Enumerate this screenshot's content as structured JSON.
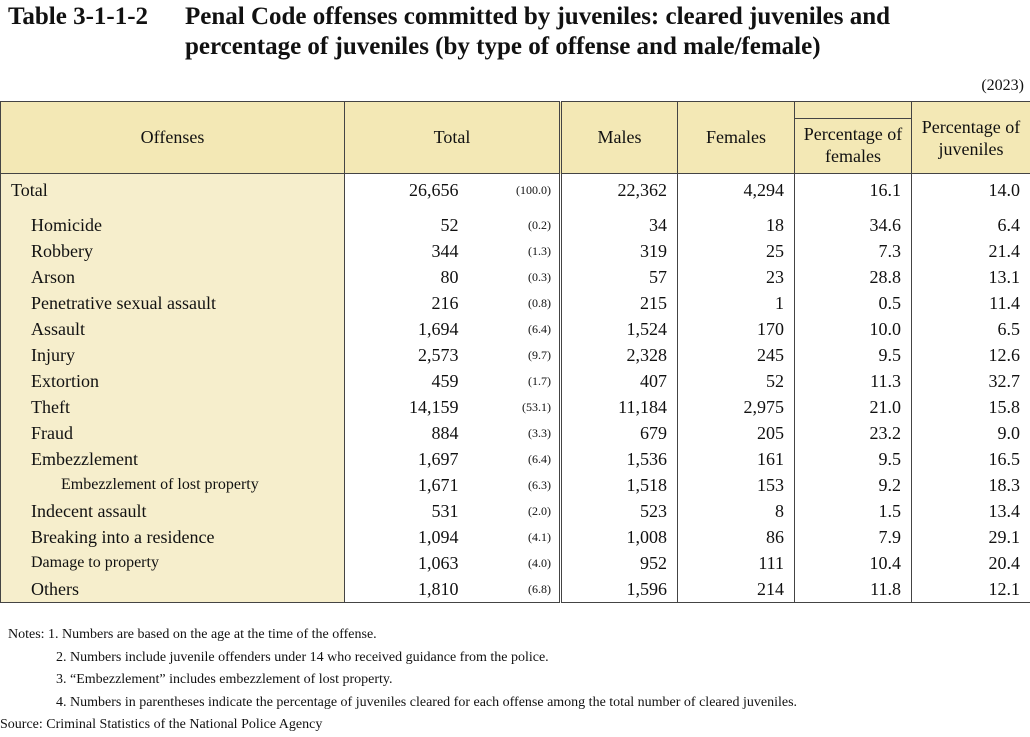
{
  "title": {
    "number": "Table 3-1-1-2",
    "line1": "Penal Code offenses committed by juveniles: cleared juveniles and",
    "line2": "percentage of juveniles (by type of offense and male/female)"
  },
  "year": "(2023)",
  "headers": {
    "offenses": "Offenses",
    "total": "Total",
    "males": "Males",
    "females": "Females",
    "pct_females": "Percentage of females",
    "pct_juveniles": "Percentage of juveniles"
  },
  "rows": [
    {
      "offense": "Total",
      "total": "26,656",
      "total_pct": "(100.0)",
      "males": "22,362",
      "females": "4,294",
      "pct_females": "16.1",
      "pct_juveniles": "14.0"
    },
    {
      "offense": "Homicide",
      "total": "52",
      "total_pct": "(0.2)",
      "males": "34",
      "females": "18",
      "pct_females": "34.6",
      "pct_juveniles": "6.4"
    },
    {
      "offense": "Robbery",
      "total": "344",
      "total_pct": "(1.3)",
      "males": "319",
      "females": "25",
      "pct_females": "7.3",
      "pct_juveniles": "21.4"
    },
    {
      "offense": "Arson",
      "total": "80",
      "total_pct": "(0.3)",
      "males": "57",
      "females": "23",
      "pct_females": "28.8",
      "pct_juveniles": "13.1"
    },
    {
      "offense": "Penetrative sexual assault",
      "total": "216",
      "total_pct": "(0.8)",
      "males": "215",
      "females": "1",
      "pct_females": "0.5",
      "pct_juveniles": "11.4"
    },
    {
      "offense": "Assault",
      "total": "1,694",
      "total_pct": "(6.4)",
      "males": "1,524",
      "females": "170",
      "pct_females": "10.0",
      "pct_juveniles": "6.5"
    },
    {
      "offense": "Injury",
      "total": "2,573",
      "total_pct": "(9.7)",
      "males": "2,328",
      "females": "245",
      "pct_females": "9.5",
      "pct_juveniles": "12.6"
    },
    {
      "offense": "Extortion",
      "total": "459",
      "total_pct": "(1.7)",
      "males": "407",
      "females": "52",
      "pct_females": "11.3",
      "pct_juveniles": "32.7"
    },
    {
      "offense": "Theft",
      "total": "14,159",
      "total_pct": "(53.1)",
      "males": "11,184",
      "females": "2,975",
      "pct_females": "21.0",
      "pct_juveniles": "15.8"
    },
    {
      "offense": "Fraud",
      "total": "884",
      "total_pct": "(3.3)",
      "males": "679",
      "females": "205",
      "pct_females": "23.2",
      "pct_juveniles": "9.0"
    },
    {
      "offense": "Embezzlement",
      "total": "1,697",
      "total_pct": "(6.4)",
      "males": "1,536",
      "females": "161",
      "pct_females": "9.5",
      "pct_juveniles": "16.5"
    },
    {
      "offense": "Embezzlement of lost property",
      "total": "1,671",
      "total_pct": "(6.3)",
      "males": "1,518",
      "females": "153",
      "pct_females": "9.2",
      "pct_juveniles": "18.3"
    },
    {
      "offense": "Indecent assault",
      "total": "531",
      "total_pct": "(2.0)",
      "males": "523",
      "females": "8",
      "pct_females": "1.5",
      "pct_juveniles": "13.4"
    },
    {
      "offense": "Breaking into a residence",
      "total": "1,094",
      "total_pct": "(4.1)",
      "males": "1,008",
      "females": "86",
      "pct_females": "7.9",
      "pct_juveniles": "29.1"
    },
    {
      "offense": "Damage to property",
      "total": "1,063",
      "total_pct": "(4.0)",
      "males": "952",
      "females": "111",
      "pct_females": "10.4",
      "pct_juveniles": "20.4"
    },
    {
      "offense": "Others",
      "total": "1,810",
      "total_pct": "(6.8)",
      "males": "1,596",
      "females": "214",
      "pct_females": "11.8",
      "pct_juveniles": "12.1"
    }
  ],
  "notes": [
    "Notes: 1. Numbers  are based on the age at the time of the offense.",
    "2. Numbers include juvenile offenders under 14 who received guidance from the police.",
    "3. “Embezzlement” includes embezzlement of lost property.",
    "4. Numbers in parentheses indicate the percentage of juveniles cleared for each offense among the total number of cleared juveniles."
  ],
  "source": "Source: Criminal Statistics of the National Police Agency",
  "colors": {
    "header_bg": "#f3e8b5",
    "offense_col_bg": "#f6eecc",
    "border": "#444444"
  }
}
